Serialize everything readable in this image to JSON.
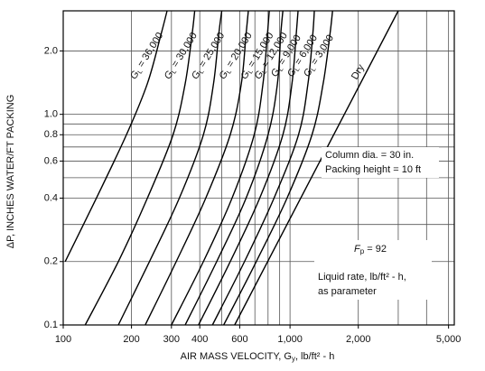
{
  "chart_data": {
    "type": "line",
    "log_x": true,
    "log_y": true,
    "grid": true,
    "color": "#000000",
    "xlim": [
      100,
      5300
    ],
    "ylim": [
      0.1,
      3.1
    ],
    "xticks": [
      100,
      200,
      300,
      400,
      600,
      {
        "value": 1000,
        "label": "1,000"
      },
      {
        "value": 2000,
        "label": "2,000"
      },
      {
        "value": 5000,
        "label": "5,000"
      }
    ],
    "yticks": [
      0.1,
      0.2,
      0.4,
      0.6,
      0.8,
      {
        "value": 1.0,
        "label": "1.0"
      },
      {
        "value": 2.0,
        "label": "2.0"
      }
    ],
    "xgrid": [
      200,
      300,
      400,
      500,
      600,
      700,
      800,
      900,
      1000,
      2000,
      3000,
      4000,
      5000
    ],
    "ygrid": [
      0.2,
      0.3,
      0.4,
      0.5,
      0.6,
      0.7,
      0.8,
      0.9,
      1.0,
      2.0
    ],
    "x_label": {
      "text": "AIR MASS VELOCITY, G",
      "subscript": "y",
      "unit": ", lb/ft² - h"
    },
    "y_label": "ΔP, INCHES WATER/FT PACKING",
    "series_label_prefix": {
      "symbol": "G",
      "subscript": "L",
      "sign": " = "
    },
    "series": [
      {
        "name": "36,000",
        "x": [
          102,
          140,
          190,
          235,
          270,
          287
        ],
        "values": [
          0.2,
          0.4,
          0.8,
          1.4,
          2.4,
          3.1
        ]
      },
      {
        "name": "30,000",
        "x": [
          125,
          175,
          235,
          305,
          345,
          370,
          380
        ],
        "values": [
          0.1,
          0.2,
          0.4,
          0.8,
          1.4,
          2.4,
          3.1
        ]
      },
      {
        "name": "25,000",
        "x": [
          175,
          240,
          325,
          415,
          460,
          485,
          500
        ],
        "values": [
          0.1,
          0.2,
          0.4,
          0.8,
          1.4,
          2.4,
          3.1
        ]
      },
      {
        "name": "20,000",
        "x": [
          230,
          315,
          425,
          545,
          610,
          640,
          655
        ],
        "values": [
          0.1,
          0.2,
          0.4,
          0.8,
          1.4,
          2.4,
          3.1
        ]
      },
      {
        "name": "15,000",
        "x": [
          300,
          415,
          555,
          695,
          760,
          795,
          810
        ],
        "values": [
          0.1,
          0.2,
          0.4,
          0.8,
          1.4,
          2.4,
          3.1
        ]
      },
      {
        "name": "12,000",
        "x": [
          345,
          475,
          640,
          800,
          880,
          910,
          930
        ],
        "values": [
          0.1,
          0.2,
          0.4,
          0.8,
          1.4,
          2.4,
          3.1
        ]
      },
      {
        "name": "9,000",
        "x": [
          395,
          545,
          735,
          930,
          1020,
          1065,
          1085
        ],
        "values": [
          0.1,
          0.2,
          0.4,
          0.8,
          1.4,
          2.4,
          3.1
        ]
      },
      {
        "name": "6,000",
        "x": [
          455,
          630,
          850,
          1090,
          1200,
          1260,
          1280
        ],
        "values": [
          0.1,
          0.2,
          0.4,
          0.8,
          1.4,
          2.4,
          3.1
        ]
      },
      {
        "name": "3,000",
        "x": [
          510,
          710,
          970,
          1250,
          1400,
          1500,
          1540
        ],
        "values": [
          0.1,
          0.2,
          0.4,
          0.8,
          1.4,
          2.4,
          3.1
        ]
      }
    ],
    "reference_line": {
      "name": "Dry",
      "x": [
        570,
        3000
      ],
      "values": [
        0.1,
        3.1
      ]
    },
    "annotations": {
      "column": [
        "Column dia. = 30 in.",
        "Packing height = 10 ft"
      ],
      "packing_factor": {
        "symbol": "F",
        "subscript": "p",
        "text": " = 92"
      },
      "parameter": [
        "Liquid rate, lb/ft² - h,",
        "as parameter"
      ]
    }
  }
}
